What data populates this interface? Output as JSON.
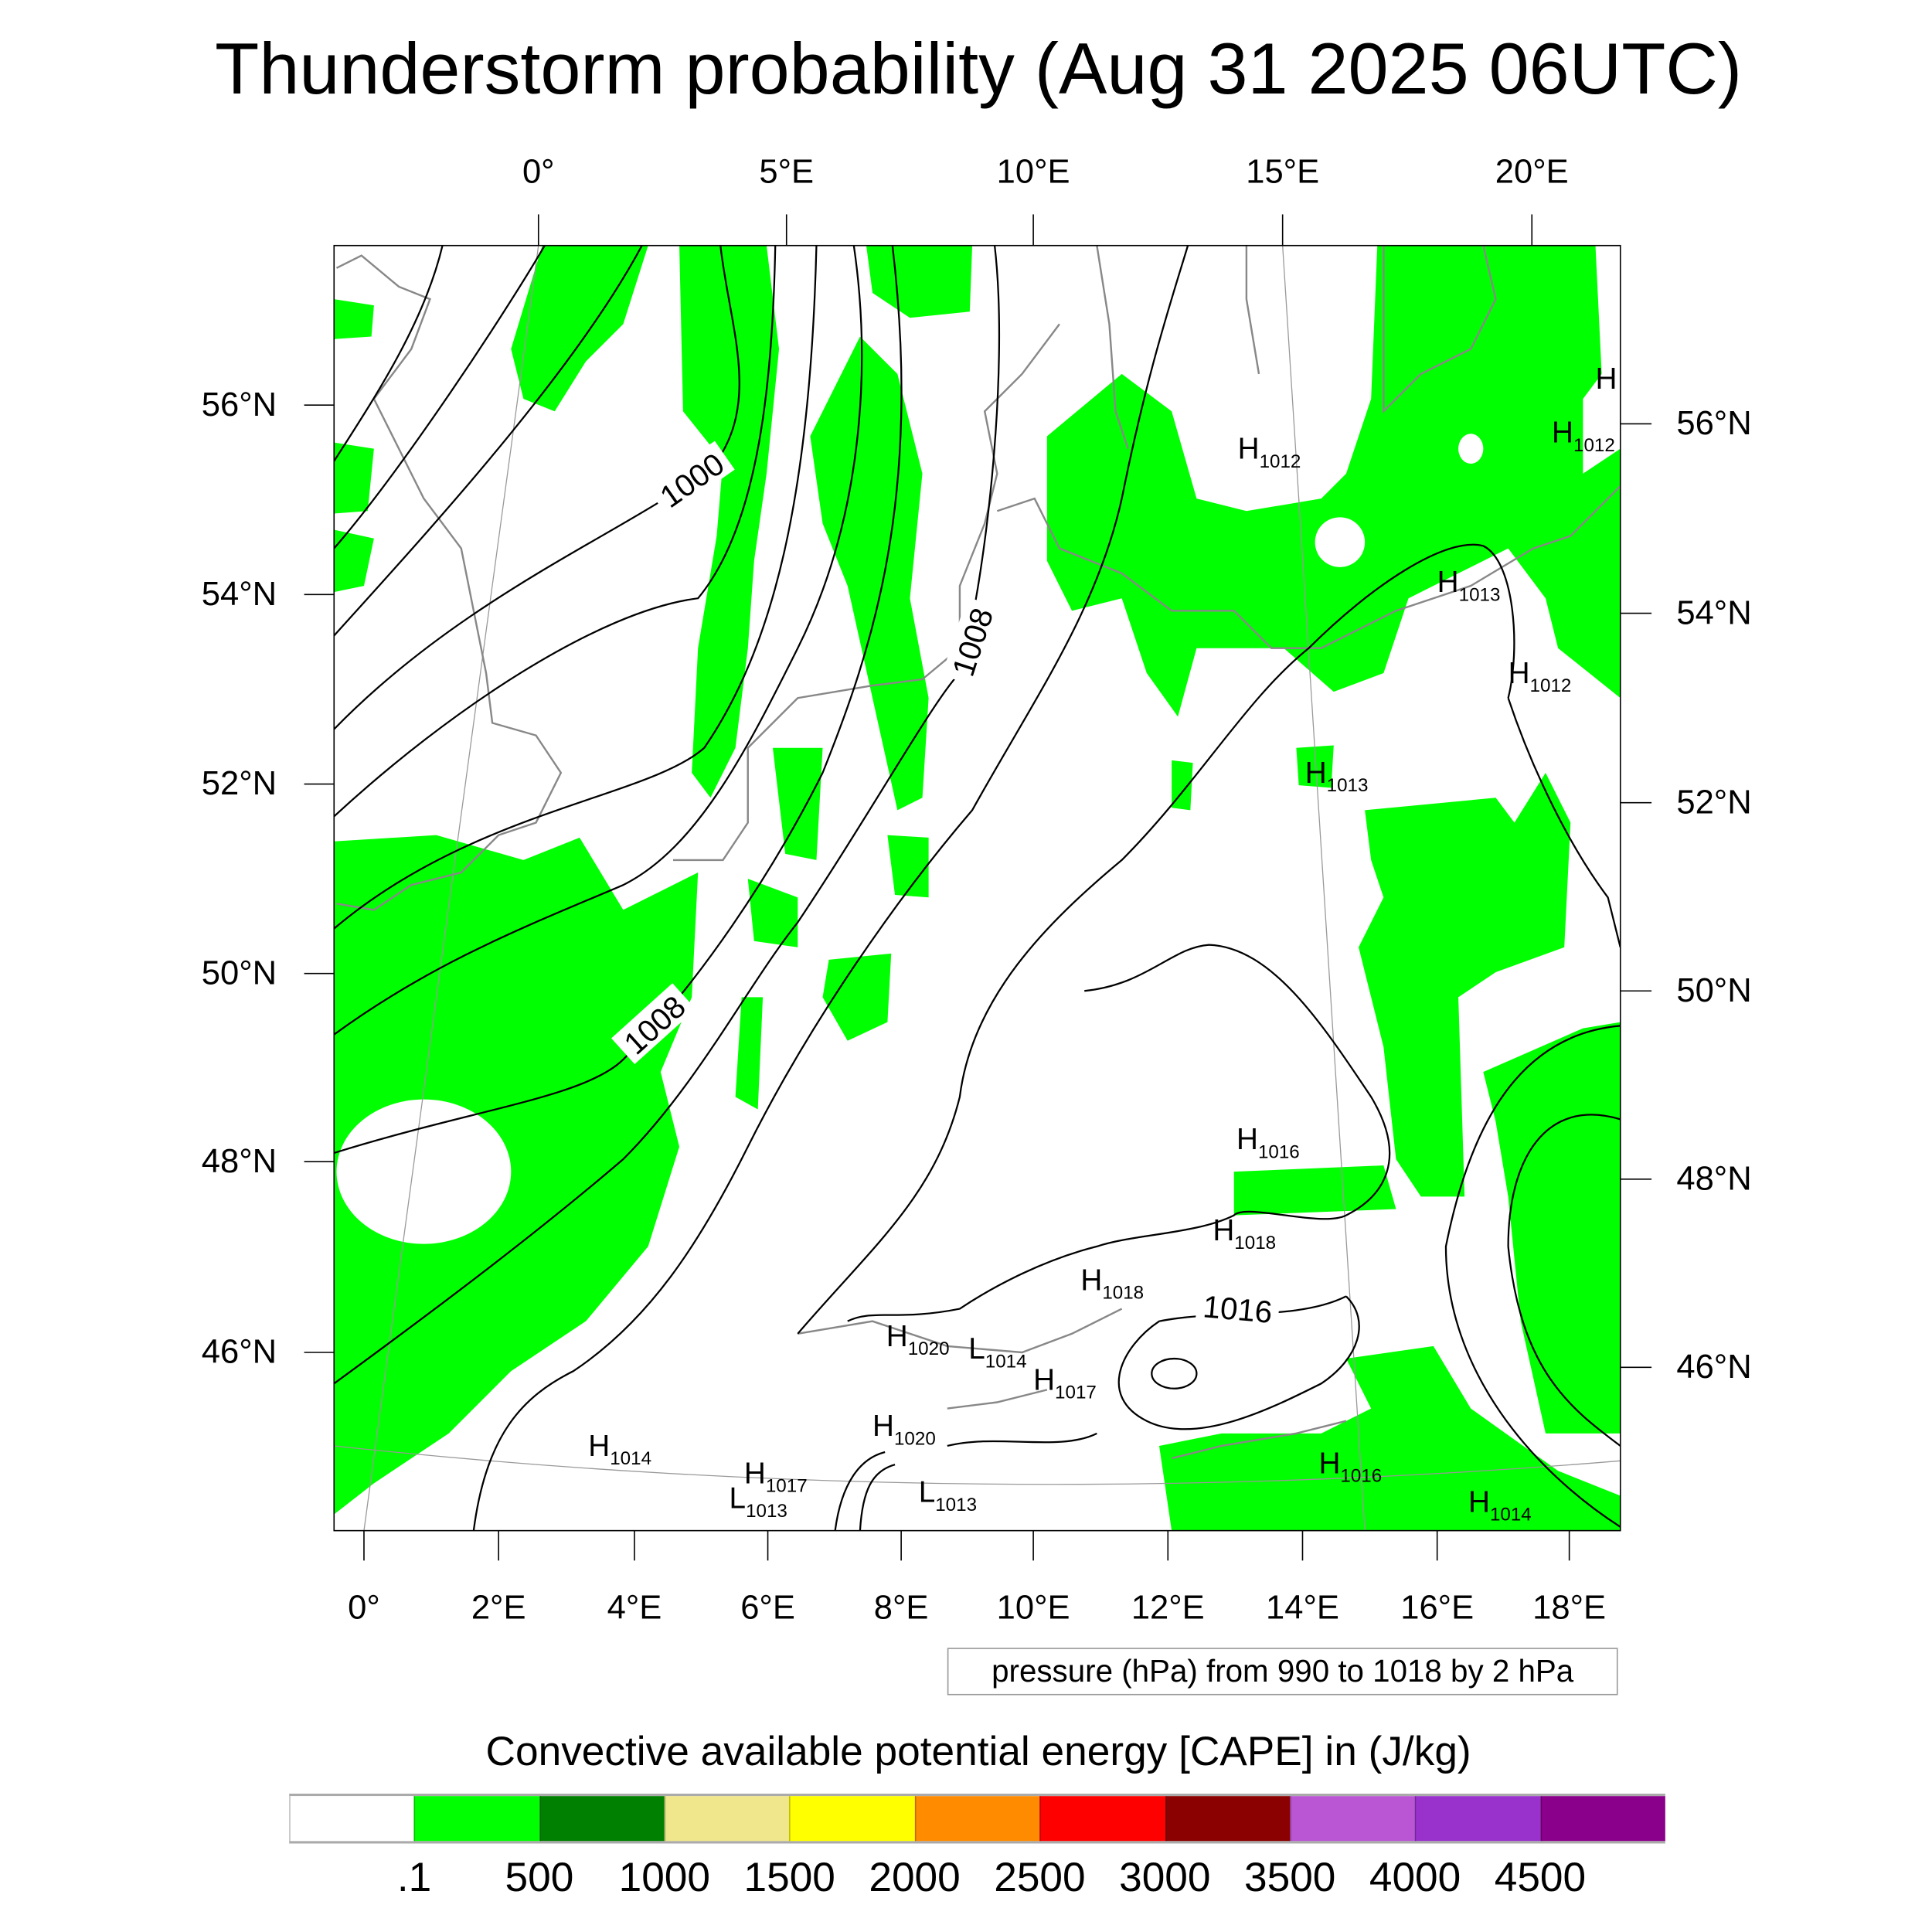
{
  "title": "Thunderstorm probability (Aug 31 2025 06UTC)",
  "map": {
    "top_lon_labels": [
      "0°",
      "5°E",
      "10°E",
      "15°E",
      "20°E"
    ],
    "bottom_lon_labels": [
      "0°",
      "2°E",
      "4°E",
      "6°E",
      "8°E",
      "10°E",
      "12°E",
      "14°E",
      "16°E",
      "18°E"
    ],
    "left_lat_labels": [
      "56°N",
      "54°N",
      "52°N",
      "50°N",
      "48°N",
      "46°N"
    ],
    "right_lat_labels": [
      "56°N",
      "54°N",
      "52°N",
      "50°N",
      "48°N",
      "46°N"
    ],
    "contour_labels": [
      "1000",
      "1008",
      "1008",
      "1016"
    ],
    "pressure_centers": [
      {
        "type": "H",
        "value": "1012"
      },
      {
        "type": "H",
        "value": "1012"
      },
      {
        "type": "H",
        "value": ""
      },
      {
        "type": "H",
        "value": "1013"
      },
      {
        "type": "H",
        "value": "1012"
      },
      {
        "type": "H",
        "value": "1013"
      },
      {
        "type": "H",
        "value": "1016"
      },
      {
        "type": "H",
        "value": "1018"
      },
      {
        "type": "H",
        "value": "1018"
      },
      {
        "type": "H",
        "value": "1020"
      },
      {
        "type": "L",
        "value": "1014"
      },
      {
        "type": "H",
        "value": "1017"
      },
      {
        "type": "H",
        "value": "1020"
      },
      {
        "type": "H",
        "value": "1014"
      },
      {
        "type": "H",
        "value": "1017"
      },
      {
        "type": "L",
        "value": "1013"
      },
      {
        "type": "L",
        "value": "1013"
      },
      {
        "type": "H",
        "value": "1016"
      },
      {
        "type": "H",
        "value": "1014"
      }
    ],
    "cape_fill_color": "#00ff00"
  },
  "contour_info": "pressure (hPa) from 990 to 1018 by 2 hPa",
  "colorbar": {
    "title": "Convective available potential energy [CAPE] in (J/kg)",
    "colors": [
      "#ffffff",
      "#00ff00",
      "#008000",
      "#f0e68c",
      "#ffff00",
      "#ff8c00",
      "#ff0000",
      "#8b0000",
      "#ba55d3",
      "#9932cc",
      "#8b008b"
    ],
    "labels": [
      ".1",
      "500",
      "1000",
      "1500",
      "2000",
      "2500",
      "3000",
      "3500",
      "4000",
      "4500"
    ]
  }
}
